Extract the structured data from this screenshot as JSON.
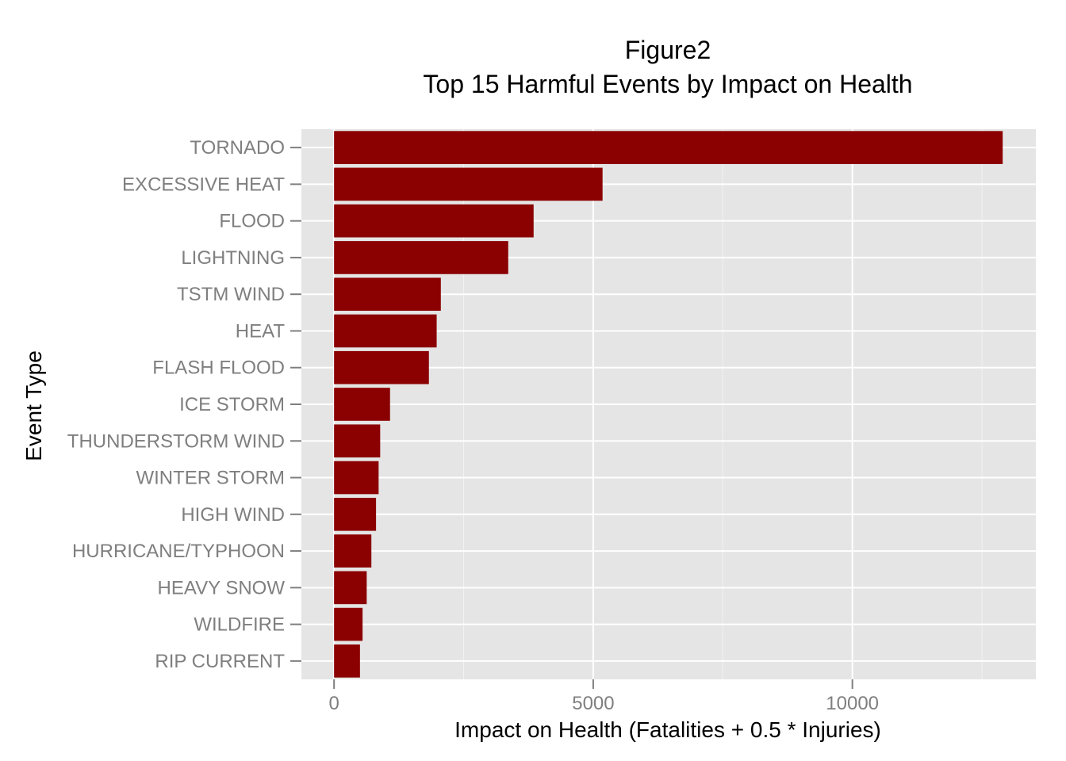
{
  "chart_data": {
    "type": "bar",
    "orientation": "horizontal",
    "title": "Figure2",
    "subtitle": "Top 15 Harmful Events by Impact on Health",
    "xlabel": "Impact on Health (Fatalities + 0.5 * Injuries)",
    "ylabel": "Event Type",
    "categories": [
      "TORNADO",
      "EXCESSIVE HEAT",
      "FLOOD",
      "LIGHTNING",
      "TSTM WIND",
      "HEAT",
      "FLASH FLOOD",
      "ICE STORM",
      "THUNDERSTORM WIND",
      "WINTER STORM",
      "HIGH WIND",
      "HURRICANE/TYPHOON",
      "HEAVY SNOW",
      "WILDFIRE",
      "RIP CURRENT"
    ],
    "values": [
      12900,
      5180,
      3850,
      3360,
      2060,
      1980,
      1830,
      1080,
      890,
      860,
      810,
      720,
      630,
      550,
      500
    ],
    "xlim": [
      -630,
      13540
    ],
    "xticks": [
      0,
      5000,
      10000
    ],
    "xtick_labels": [
      "0",
      "5000",
      "10000"
    ],
    "grid": true,
    "bar_color": "#8B0000",
    "panel_color": "#E5E5E5",
    "grid_color": "#FFFFFF"
  }
}
